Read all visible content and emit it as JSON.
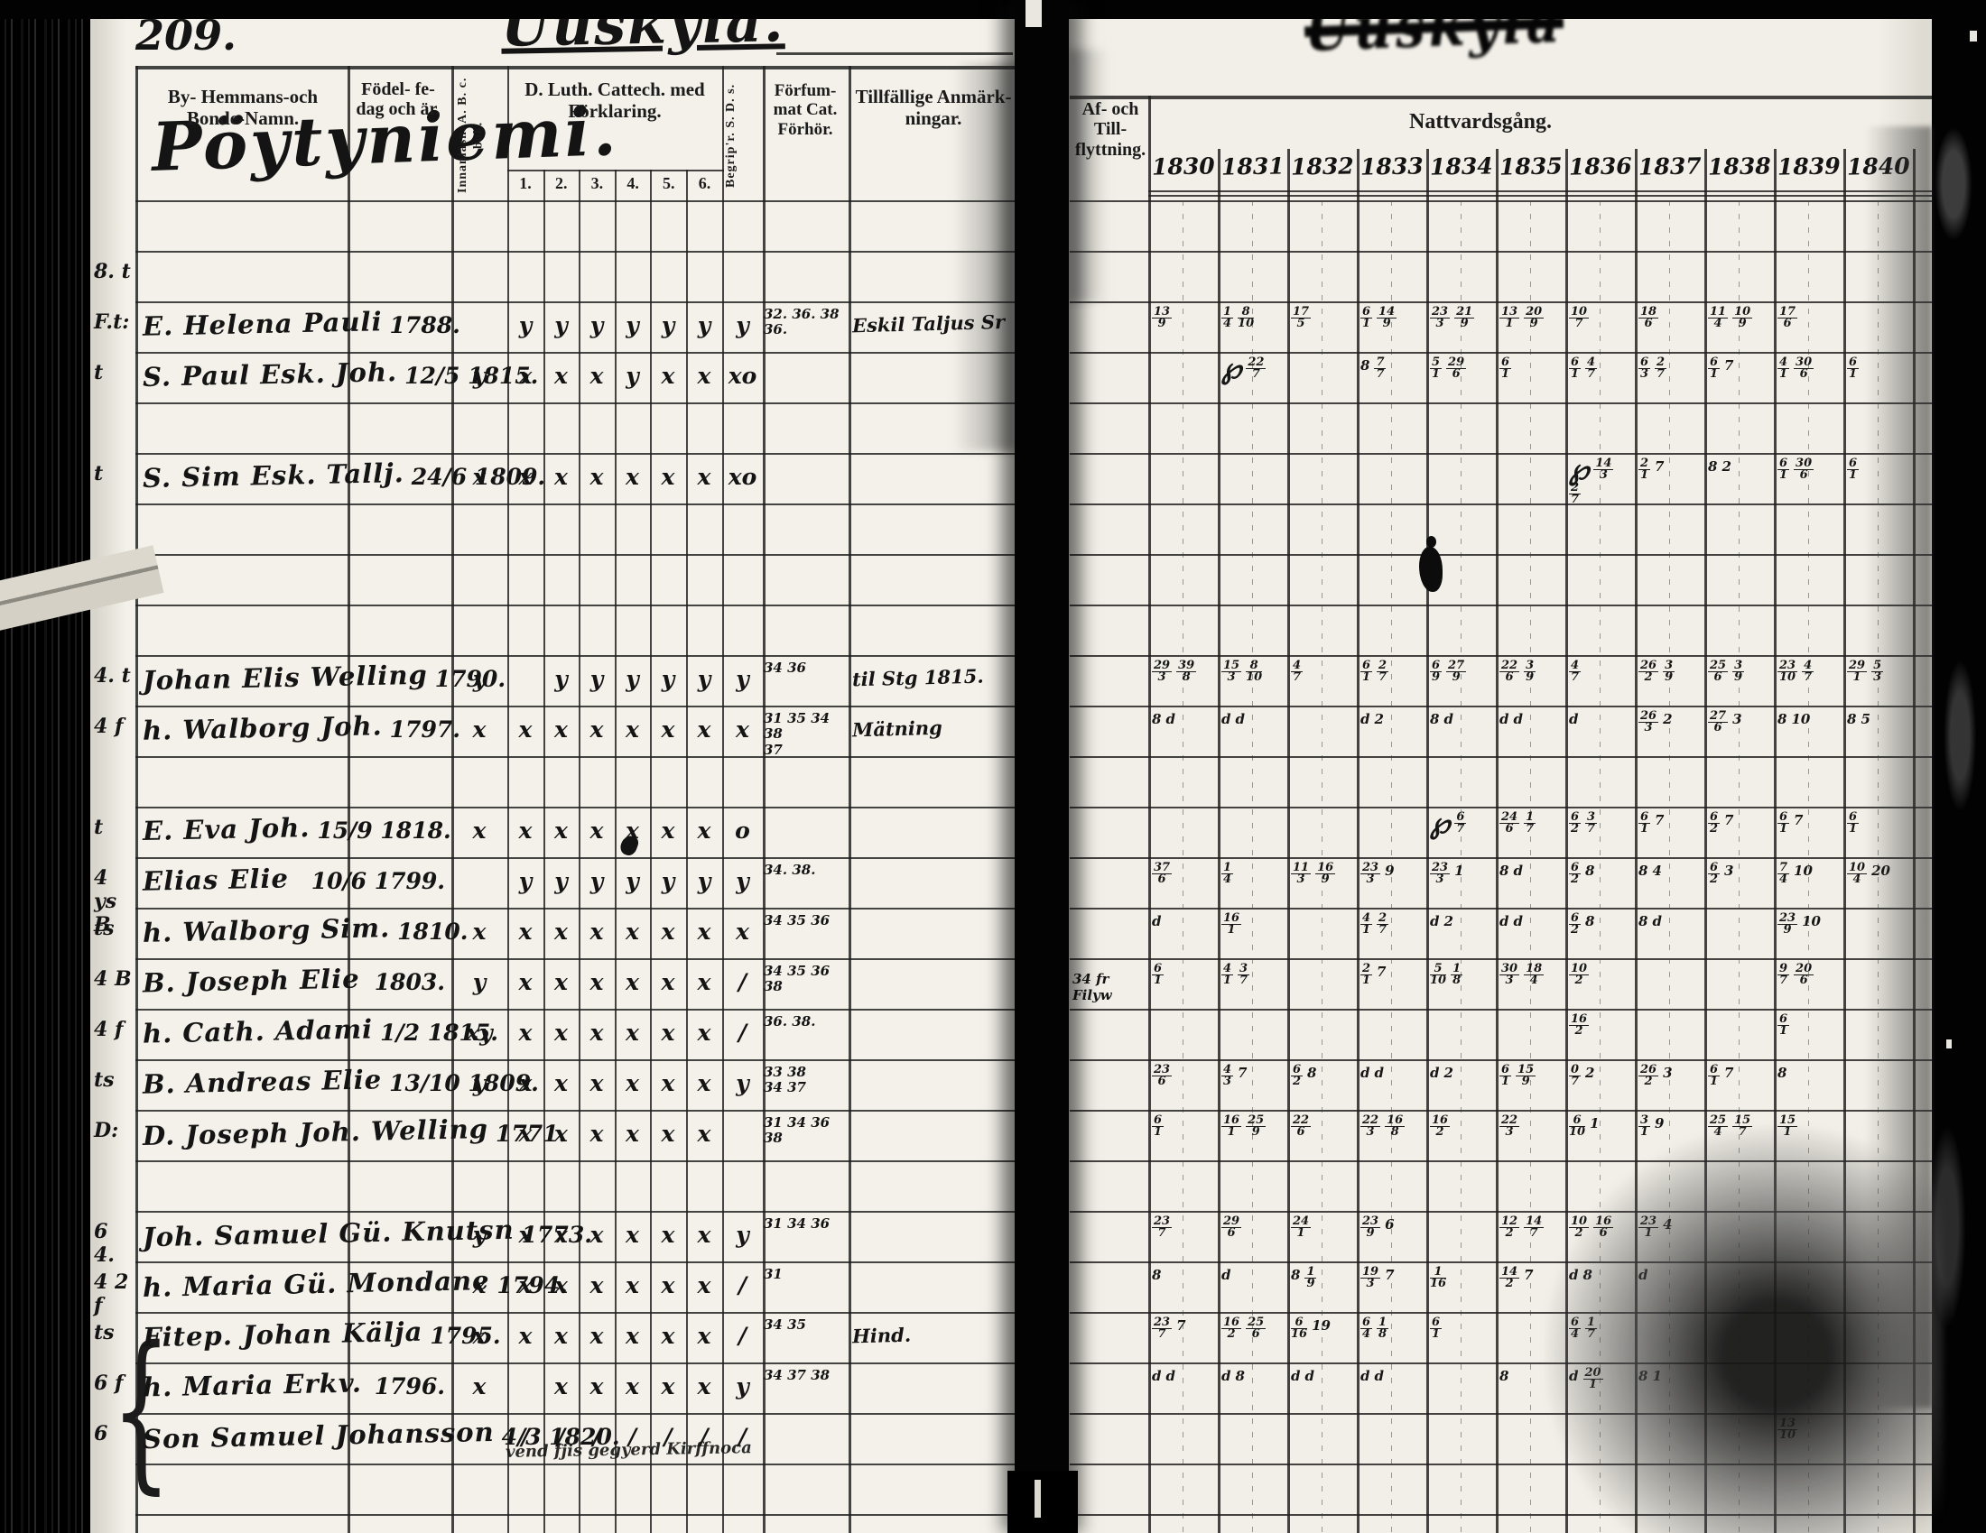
{
  "scan": {
    "page_number": "209.",
    "heading_script": "Uuskyla.",
    "heading_bleed": "Uuskyla",
    "village": "Pöytyniemi."
  },
  "left_headers": {
    "name": "By- Hemmans-och Bonde-Namn.",
    "birth": "Födel- fe-dag och är.",
    "abc": "Innanläsn. A. B. c. bok.",
    "dluth": "D. Luth. Cattech. med Förklaring.",
    "dluth_cols": [
      "1.",
      "2.",
      "3.",
      "4.",
      "5.",
      "6."
    ],
    "sds": "Begrip'r. S. D. s.",
    "forsummat": "Förfum- mat Cat. Förhör.",
    "tillfallig": "Tillfällige Anmärk- ningar."
  },
  "right_headers": {
    "flytt": "Af- och Till- flyttning.",
    "nattvard": "Nattvardsgång.",
    "years": [
      "1830",
      "1831",
      "1832",
      "1833",
      "1834",
      "1835",
      "1836",
      "1837",
      "1838",
      "1839",
      "1840"
    ]
  },
  "rows": [
    {
      "i": 1,
      "margin": "8. t"
    },
    {
      "i": 2,
      "margin": "F.t:",
      "name": "E. Helena Pauli",
      "birth": "1788.",
      "marks": [
        "",
        "y",
        "y",
        "y",
        "y",
        "y",
        "y",
        "y"
      ],
      "forsummat": "32. 36. 38 / 36.",
      "tillfallig": "Eskil Taljus Sr",
      "communion": [
        "13/9",
        "1/4 8/10",
        "17/5",
        "6/1 14/9",
        "23/3 21/9",
        "13/1 20/9",
        "10/7",
        "18/6",
        "11/4 10/9",
        "17/6",
        ""
      ]
    },
    {
      "i": 3,
      "margin": "t",
      "name": "S. Paul Esk. Joh.",
      "birth": "12/5 1815.",
      "marks": [
        "y",
        "x",
        "x",
        "x",
        "y",
        "x",
        "x",
        "xo"
      ],
      "communion": [
        "",
        "℘ 22/7",
        "",
        "8 7/7",
        "5/1 29/6",
        "6/1",
        "6/1 4/7",
        "6/3 2/7",
        "6/1 7",
        "4/1 30/6",
        "6/1"
      ]
    },
    {
      "i": 5,
      "margin": "t",
      "name": "S. Sim Esk. Tallj.",
      "birth": "24/6 1809.",
      "marks": [
        "x",
        "x",
        "x",
        "x",
        "x",
        "x",
        "x",
        "xo"
      ],
      "communion": [
        "",
        "",
        "",
        "",
        "",
        "",
        "℘ 14/3 2/7",
        "2/1 7",
        "8 2",
        "6/1 30/6",
        "6/1"
      ]
    },
    {
      "i": 9,
      "margin": "4. t",
      "name": "Johan Elis Welling",
      "birth": "1790.",
      "marks": [
        "y",
        "",
        "y",
        "y",
        "y",
        "y",
        "y",
        "y"
      ],
      "forsummat": "34 36",
      "tillfallig": "til Stg 1815.",
      "communion": [
        "29/3 39/8",
        "15/3 8/10",
        "4/7",
        "6/1 2/7",
        "6/9 27/9",
        "22/6 3/9",
        "4/7",
        "26/2 3/9",
        "25/6 3/9",
        "23/10 4/7",
        "29/1 5/3"
      ]
    },
    {
      "i": 10,
      "margin": "4 f",
      "name": "h. Walborg Joh.",
      "birth": "1797.",
      "marks": [
        "x",
        "x",
        "x",
        "x",
        "x",
        "x",
        "x",
        "x"
      ],
      "forsummat": "31 35 34 38 / 37",
      "tillfallig": "Mätning",
      "communion": [
        "8 d",
        "d d",
        "",
        "d 2",
        "8 d",
        "d d",
        "d",
        "26/3 2",
        "27/6 3",
        "8 10",
        "8 5"
      ]
    },
    {
      "i": 12,
      "margin": "t",
      "name": "E. Eva Joh.",
      "birth": "15/9 1818.",
      "marks": [
        "x",
        "x",
        "x",
        "x",
        "x",
        "x",
        "x",
        "o"
      ],
      "communion": [
        "",
        "",
        "",
        "",
        "℘ 6/7",
        "24/6 1/7",
        "6/2 3/7",
        "6/1 7",
        "6/2 7",
        "6/1 7",
        "6/1"
      ]
    },
    {
      "i": 13,
      "margin": "4 ys B",
      "name": "Elias Elie",
      "birth": "10/6 1799.",
      "marks": [
        "",
        "y",
        "y",
        "y",
        "y",
        "y",
        "y",
        "y"
      ],
      "forsummat": "34. 38.",
      "communion": [
        "37/6",
        "1/4",
        "11/3 16/9",
        "23/3 9",
        "23/3 1",
        "8 d",
        "6/2 8",
        "8 4",
        "6/2 3",
        "7/4 10",
        "10/4 20"
      ]
    },
    {
      "i": 14,
      "margin": "ts",
      "name": "h. Walborg Sim.",
      "birth": "1810.",
      "marks": [
        "x",
        "x",
        "x",
        "x",
        "x",
        "x",
        "x",
        "x"
      ],
      "forsummat": "34 35 36",
      "communion": [
        "d",
        "16/1",
        "",
        "4/1 2/7",
        "d 2",
        "d d",
        "6/2 8",
        "8 d",
        "",
        "23/9 10",
        ""
      ]
    },
    {
      "i": 15,
      "margin": "4 B",
      "name": "B. Joseph Elie",
      "birth": "1803.",
      "marks": [
        "y",
        "x",
        "x",
        "x",
        "x",
        "x",
        "x",
        "/"
      ],
      "forsummat": "34 35 36 / 38",
      "flytt": "34 fr Filyw",
      "communion": [
        "6/1",
        "4/1 3/7",
        "",
        "2/1 7",
        "5/10 1/8",
        "30/3 18/4",
        "10/2",
        "",
        "",
        "9/7 20/6",
        ""
      ]
    },
    {
      "i": 16,
      "margin": "4 f",
      "name": "h. Cath. Adami",
      "birth": "1/2 1815.",
      "marks": [
        "xy",
        "x",
        "x",
        "x",
        "x",
        "x",
        "x",
        "/"
      ],
      "forsummat": "36. 38.",
      "communion": [
        "",
        "",
        "",
        "",
        "",
        "",
        "16/2",
        "",
        "",
        "6/1",
        ""
      ]
    },
    {
      "i": 17,
      "margin": "ts",
      "name": "B. Andreas Elie",
      "birth": "13/10 1809.",
      "marks": [
        "y",
        "x",
        "x",
        "x",
        "x",
        "x",
        "x",
        "y"
      ],
      "forsummat": "33 38 / 34 37",
      "communion": [
        "23/6",
        "4/3 7",
        "6/2 8",
        "d d",
        "d 2",
        "6/1 15/9",
        "0/7 2",
        "26/2 3",
        "6/1 7",
        "8",
        ""
      ]
    },
    {
      "i": 18,
      "margin": "D:",
      "name": "D. Joseph Joh. Welling",
      "birth": "1771.",
      "marks": [
        "",
        "x",
        "x",
        "x",
        "x",
        "x",
        "x",
        ""
      ],
      "forsummat": "31 34 36 38",
      "communion": [
        "6/1",
        "16/1 25/9",
        "22/6",
        "22/3 16/8",
        "16/2",
        "22/3",
        "6/10 1",
        "3/1 9",
        "25/4 15/7",
        "15/1",
        ""
      ]
    },
    {
      "i": 20,
      "margin": "6 4.",
      "name": "Joh. Samuel Gü. Knutsn",
      "birth": "1773.",
      "marks": [
        "y",
        "x",
        "x",
        "x",
        "x",
        "x",
        "x",
        "y"
      ],
      "forsummat": "31 34 36",
      "communion": [
        "23/7",
        "29/6",
        "24/1",
        "23/9 6",
        "",
        "12/2 14/7",
        "10/2 16/6",
        "23/1 4",
        "",
        "",
        ""
      ]
    },
    {
      "i": 21,
      "margin": "4 2 f",
      "name": "h. Maria Gü. Mondane",
      "birth": "1794.",
      "marks": [
        "x",
        "x",
        "x",
        "x",
        "x",
        "x",
        "x",
        "/"
      ],
      "forsummat": "31",
      "communion": [
        "8",
        "d",
        "8 1/9",
        "19/3 7",
        "1/16",
        "14/2 7",
        "d 8",
        "d",
        "",
        "",
        ""
      ]
    },
    {
      "i": 22,
      "margin": "ts",
      "name": "Fitep. Johan Kälja",
      "birth": "1795.",
      "marks": [
        "x",
        "x",
        "x",
        "x",
        "x",
        "x",
        "x",
        "/"
      ],
      "forsummat": "34 35",
      "tillfallig": "Hind.",
      "communion": [
        "23/7 7",
        "16/2 25/6",
        "6/16 19",
        "6/4 1/8",
        "6/1",
        "",
        "6/4 1/7",
        "",
        "",
        "",
        ""
      ]
    },
    {
      "i": 23,
      "margin": "6 f",
      "name": "h. Maria Erkv.",
      "birth": "1796.",
      "marks": [
        "x",
        "",
        "x",
        "x",
        "x",
        "x",
        "x",
        "y"
      ],
      "forsummat": "34 37 38",
      "communion": [
        "d d",
        "d 8",
        "d d",
        "d d",
        "",
        "8",
        "d 20/1",
        "8 1",
        "",
        "",
        ""
      ]
    },
    {
      "i": 24,
      "margin": "6",
      "name": "Son Samuel Johansson",
      "birth": "4/3 1820.",
      "marks": [
        "",
        "/",
        "/",
        "/",
        "/",
        "/",
        "/",
        "/"
      ],
      "note": "vend fjis gegyerd Kirffnoca",
      "communion": [
        "",
        "",
        "",
        "",
        "",
        "",
        "",
        "",
        "",
        "13/10",
        ""
      ]
    }
  ]
}
